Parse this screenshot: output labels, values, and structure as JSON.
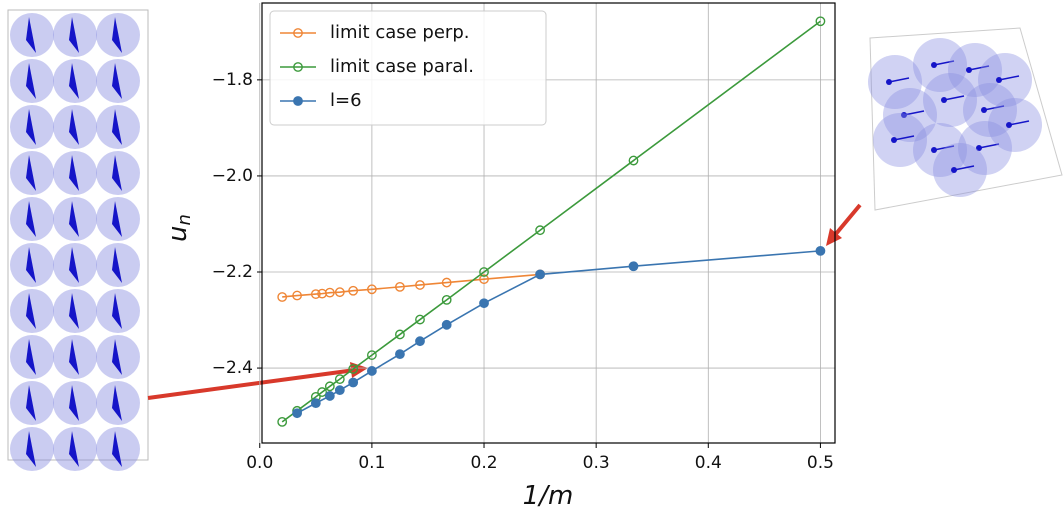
{
  "chart_data": {
    "type": "line",
    "xlabel": "1/m",
    "ylabel": "u",
    "ylabel_subscript": "n",
    "xlim": [
      0.002,
      0.513
    ],
    "ylim": [
      -2.556,
      -1.64
    ],
    "xticks": [
      {
        "value": 0,
        "label": "0.0"
      },
      0.1,
      0.2,
      0.3,
      0.4,
      0.5
    ],
    "yticks": [
      {
        "value": -1.8,
        "label": "−1.8"
      },
      {
        "value": -2.0,
        "label": "−2.0"
      },
      {
        "value": -2.2,
        "label": "−2.2"
      },
      {
        "value": -2.4,
        "label": "−2.4"
      }
    ],
    "grid": true,
    "legend": "upper left",
    "series": [
      {
        "name": "limit case perp.",
        "color": "#ef8636",
        "filled": false,
        "x": [
          0.02,
          0.0333,
          0.05,
          0.0556,
          0.0625,
          0.0714,
          0.0833,
          0.1,
          0.125,
          0.1429,
          0.1667,
          0.2,
          0.25
        ],
        "values": [
          -2.252,
          -2.249,
          -2.246,
          -2.245,
          -2.243,
          -2.242,
          -2.239,
          -2.236,
          -2.231,
          -2.227,
          -2.222,
          -2.215,
          -2.205
        ]
      },
      {
        "name": "limit case paral.",
        "color": "#3c9a3c",
        "filled": false,
        "x": [
          0.02,
          0.0333,
          0.05,
          0.0556,
          0.0625,
          0.0714,
          0.0833,
          0.1,
          0.125,
          0.1429,
          0.1667,
          0.2,
          0.25,
          0.3333,
          0.5
        ],
        "values": [
          -2.512,
          -2.489,
          -2.46,
          -2.45,
          -2.438,
          -2.423,
          -2.402,
          -2.373,
          -2.33,
          -2.299,
          -2.258,
          -2.2,
          -2.113,
          -1.968,
          -1.678
        ]
      },
      {
        "name": "l=6",
        "color": "#3a75b0",
        "filled": true,
        "x": [
          0.0333,
          0.05,
          0.0625,
          0.0714,
          0.0833,
          0.1,
          0.125,
          0.1429,
          0.1667,
          0.2,
          0.25,
          0.3333,
          0.5
        ],
        "values": [
          -2.494,
          -2.473,
          -2.458,
          -2.446,
          -2.43,
          -2.406,
          -2.371,
          -2.344,
          -2.31,
          -2.265,
          -2.205,
          -2.188,
          -2.156
        ]
      }
    ]
  }
}
